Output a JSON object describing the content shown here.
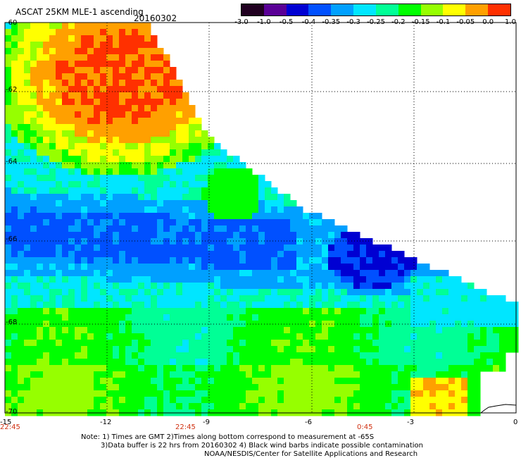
{
  "header": {
    "title": "ASCAT 25KM MLE-1 ascending",
    "date": "20160302"
  },
  "colorbar": {
    "labels": [
      "-3.0",
      "-1.0",
      "-0.5",
      "-0.4",
      "-0.35",
      "-0.3",
      "-0.25",
      "-0.2",
      "-0.15",
      "-0.1",
      "-0.05",
      "0.0",
      "1.0"
    ],
    "colors": [
      "#200020",
      "#5a0096",
      "#0000d2",
      "#0050ff",
      "#00a0ff",
      "#00e6ff",
      "#00ff96",
      "#00ff00",
      "#96ff00",
      "#ffff00",
      "#ffa000",
      "#ff3000"
    ]
  },
  "map": {
    "lat_range": [
      -70,
      -60
    ],
    "lon_range": [
      -15,
      0
    ],
    "lat_labels": [
      "-60",
      "-62",
      "-64",
      "-66",
      "-68",
      "-70"
    ],
    "lon_labels": [
      "-15",
      "-12",
      "-9",
      "-6",
      "-3",
      "0"
    ],
    "time_labels": [
      {
        "lon": -15,
        "text": "22:45"
      },
      {
        "lon": -10,
        "text": "22:45"
      },
      {
        "lon": -4.5,
        "text": "0:45"
      }
    ]
  },
  "notes": {
    "line1": "Note: 1) Times are GMT 2)Times along bottom correspond to measurement at -65S",
    "line2": "3)Data buffer is 22 hrs from 20160302 4) Black wind barbs indicate possible contamination",
    "line3": "NOAA/NESDIS/Center for Satellite Applications and Research"
  }
}
